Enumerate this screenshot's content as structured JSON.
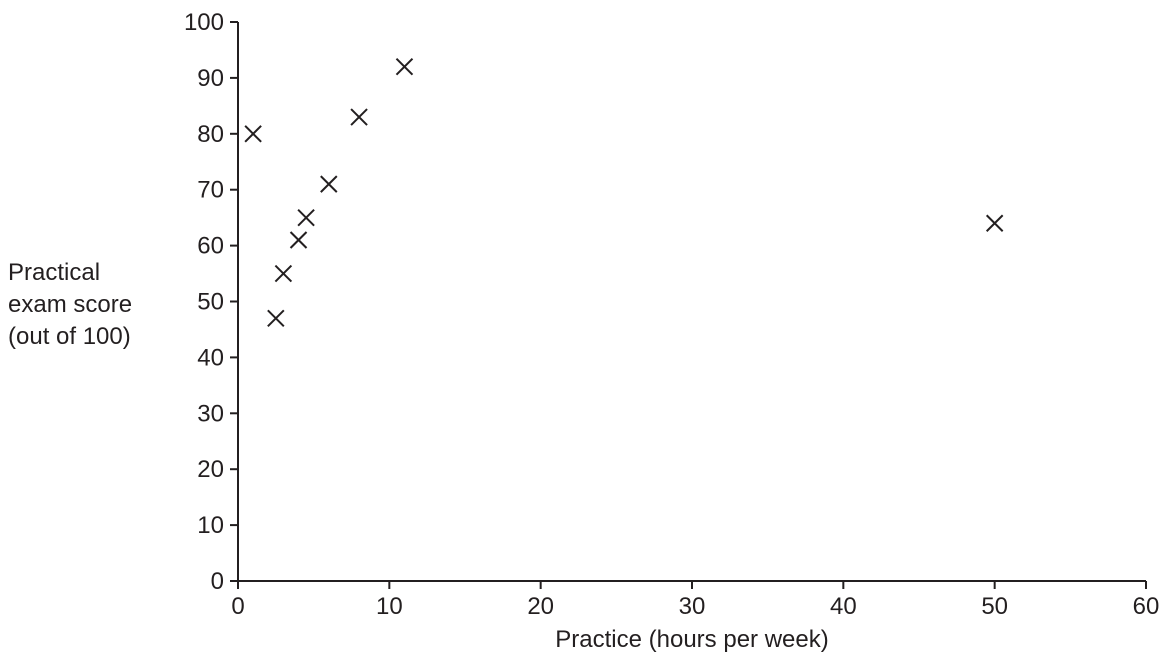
{
  "chart_data": {
    "type": "scatter",
    "title": "",
    "xlabel": "Practice (hours per week)",
    "ylabel_lines": [
      "Practical",
      "exam score",
      "(out of 100)"
    ],
    "xlim": [
      0,
      60
    ],
    "ylim": [
      0,
      100
    ],
    "x_ticks": [
      0,
      10,
      20,
      30,
      40,
      50,
      60
    ],
    "y_ticks": [
      0,
      10,
      20,
      30,
      40,
      50,
      60,
      70,
      80,
      90,
      100
    ],
    "grid": false,
    "legend": "none",
    "marker": "cross",
    "series": [
      {
        "points": [
          {
            "x": 1,
            "y": 80
          },
          {
            "x": 2.5,
            "y": 47
          },
          {
            "x": 3,
            "y": 55
          },
          {
            "x": 4,
            "y": 61
          },
          {
            "x": 4.5,
            "y": 65
          },
          {
            "x": 6,
            "y": 71
          },
          {
            "x": 8,
            "y": 83
          },
          {
            "x": 11,
            "y": 92
          },
          {
            "x": 50,
            "y": 64
          }
        ]
      }
    ],
    "colors": {
      "ink": "#231f20"
    }
  }
}
